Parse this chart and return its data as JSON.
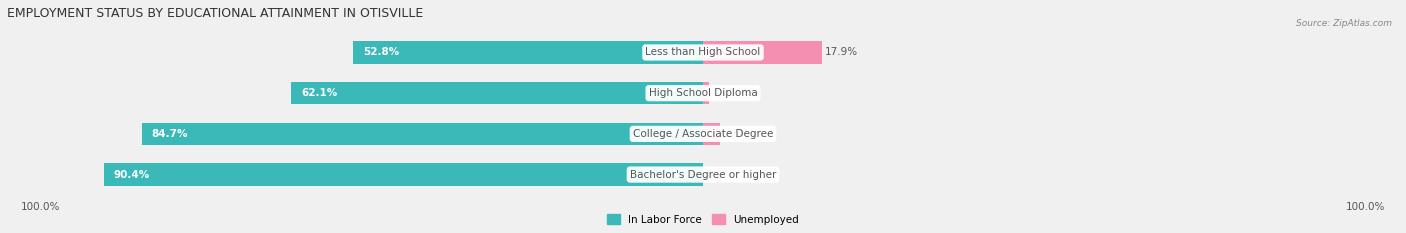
{
  "title": "EMPLOYMENT STATUS BY EDUCATIONAL ATTAINMENT IN OTISVILLE",
  "source": "Source: ZipAtlas.com",
  "categories": [
    "Less than High School",
    "High School Diploma",
    "College / Associate Degree",
    "Bachelor's Degree or higher"
  ],
  "in_labor_force": [
    52.8,
    62.1,
    84.7,
    90.4
  ],
  "unemployed": [
    17.9,
    0.9,
    2.5,
    0.0
  ],
  "bar_color_labor": "#3bb8b8",
  "bar_color_unemployed": "#f48fb1",
  "background_color": "#f0f0f0",
  "bar_bg_color": "#ffffff",
  "title_fontsize": 9,
  "label_fontsize": 7.5,
  "bar_height": 0.55,
  "axis_label_left": "100.0%",
  "axis_label_right": "100.0%",
  "legend_labor": "In Labor Force",
  "legend_unemployed": "Unemployed"
}
